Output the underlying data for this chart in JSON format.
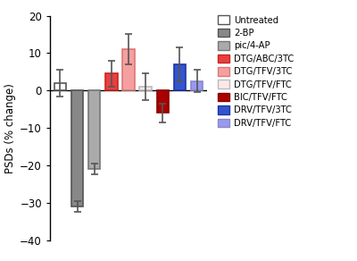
{
  "categories": [
    "Untreated",
    "2-BP",
    "pic/4-AP",
    "DTG/ABC/3TC",
    "DTG/TFV/3TC",
    "DTG/TFV/FTC",
    "BIC/TFV/FTC",
    "DRV/TFV/3TC",
    "DRV/TFV/FTC"
  ],
  "values": [
    2.0,
    -31.0,
    -21.0,
    4.5,
    11.0,
    1.0,
    -6.0,
    7.0,
    2.5
  ],
  "errors": [
    3.5,
    1.5,
    1.5,
    3.5,
    4.0,
    3.5,
    2.5,
    4.5,
    3.0
  ],
  "bar_colors": [
    "#ffffff",
    "#888888",
    "#aaaaaa",
    "#e84040",
    "#f4a0a0",
    "#fce8e8",
    "#aa0000",
    "#3355cc",
    "#9999ee"
  ],
  "bar_edgecolors": [
    "#555555",
    "#555555",
    "#777777",
    "#cc2222",
    "#dd7777",
    "#bbbbbb",
    "#880000",
    "#2233aa",
    "#8888cc"
  ],
  "ylabel": "PSDs (% change)",
  "ylim": [
    -40,
    20
  ],
  "yticks": [
    -40,
    -30,
    -20,
    -10,
    0,
    10,
    20
  ],
  "legend_labels": [
    "Untreated",
    "2-BP",
    "pic/4-AP",
    "DTG/ABC/3TC",
    "DTG/TFV/3TC",
    "DTG/TFV/FTC",
    "BIC/TFV/FTC",
    "DRV/TFV/3TC",
    "DRV/TFV/FTC"
  ],
  "legend_colors": [
    "#ffffff",
    "#888888",
    "#aaaaaa",
    "#e84040",
    "#f4a0a0",
    "#fce8e8",
    "#aa0000",
    "#3355cc",
    "#9999ee"
  ],
  "legend_edgecolors": [
    "#555555",
    "#555555",
    "#777777",
    "#cc2222",
    "#dd7777",
    "#bbbbbb",
    "#880000",
    "#2233aa",
    "#8888cc"
  ],
  "fig_width": 4.0,
  "fig_height": 2.92,
  "dpi": 100
}
